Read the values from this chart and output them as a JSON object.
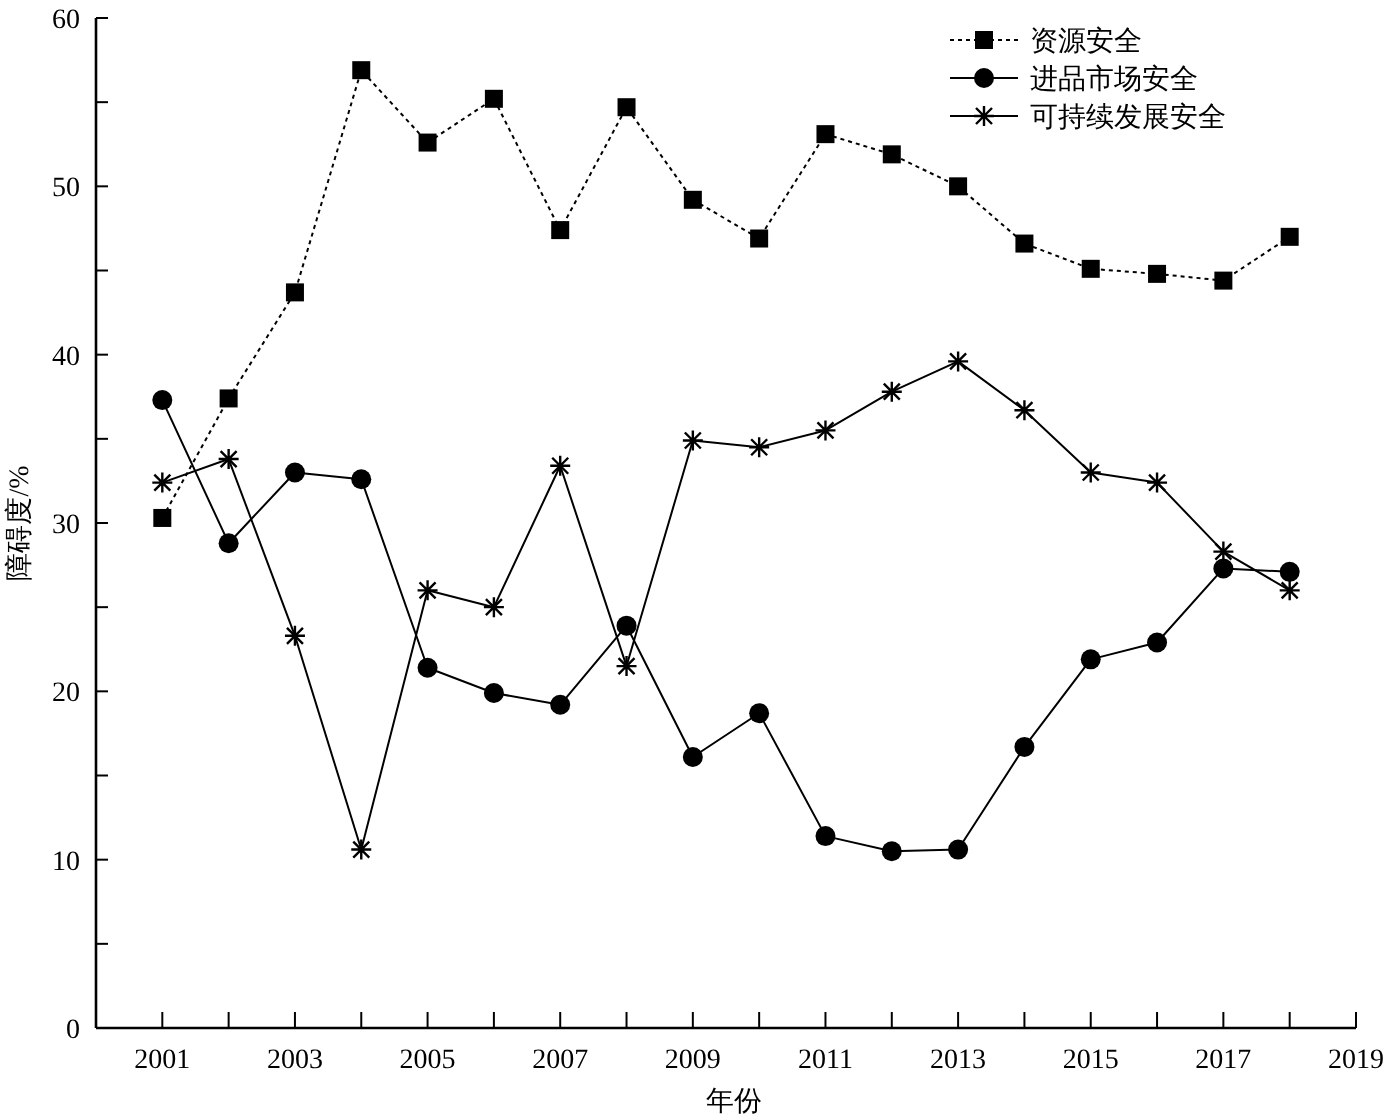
{
  "chart_data": {
    "type": "line",
    "xlabel": "年份",
    "ylabel": "障碍度/%",
    "x": [
      2001,
      2002,
      2003,
      2004,
      2005,
      2006,
      2007,
      2008,
      2009,
      2010,
      2011,
      2012,
      2013,
      2014,
      2015,
      2016,
      2017,
      2018
    ],
    "series": [
      {
        "name": "资源安全",
        "color": "#000000",
        "marker": "square",
        "line_style": "dotted",
        "values": [
          30.3,
          37.4,
          43.7,
          56.9,
          52.6,
          55.2,
          47.4,
          54.7,
          49.2,
          46.9,
          53.1,
          51.9,
          50.0,
          46.6,
          45.1,
          44.8,
          44.4,
          47.0
        ]
      },
      {
        "name": "进品市场安全",
        "color": "#000000",
        "marker": "circle",
        "line_style": "solid",
        "values": [
          37.3,
          28.8,
          33.0,
          32.6,
          21.4,
          19.9,
          19.2,
          23.9,
          16.1,
          18.7,
          11.4,
          10.5,
          10.6,
          16.7,
          21.9,
          22.9,
          27.3,
          27.1
        ]
      },
      {
        "name": "可持续发展安全",
        "color": "#000000",
        "marker": "cross",
        "line_style": "solid",
        "values": [
          32.4,
          33.8,
          23.3,
          10.6,
          26.0,
          25.0,
          33.4,
          21.5,
          34.9,
          34.5,
          35.5,
          37.8,
          39.6,
          36.7,
          33.0,
          32.4,
          28.3,
          26.0
        ]
      }
    ],
    "xlim": [
      2000,
      2019
    ],
    "xticks": [
      2001,
      {
        "value": 2002,
        "label": null
      },
      2003,
      {
        "value": 2004,
        "label": null
      },
      2005,
      {
        "value": 2006,
        "label": null
      },
      2007,
      {
        "value": 2008,
        "label": null
      },
      2009,
      {
        "value": 2010,
        "label": null
      },
      2011,
      {
        "value": 2012,
        "label": null
      },
      2013,
      {
        "value": 2014,
        "label": null
      },
      2015,
      {
        "value": 2016,
        "label": null
      },
      2017,
      {
        "value": 2018,
        "label": null
      },
      2019
    ],
    "ylim": [
      0,
      60
    ],
    "yticks": [
      0,
      {
        "value": 5,
        "label": null
      },
      10,
      {
        "value": 15,
        "label": null
      },
      20,
      {
        "value": 25,
        "label": null
      },
      30,
      {
        "value": 35,
        "label": null
      },
      40,
      {
        "value": 45,
        "label": null
      },
      50,
      {
        "value": 55,
        "label": null
      },
      60
    ],
    "grid": false,
    "legend": "top right"
  }
}
